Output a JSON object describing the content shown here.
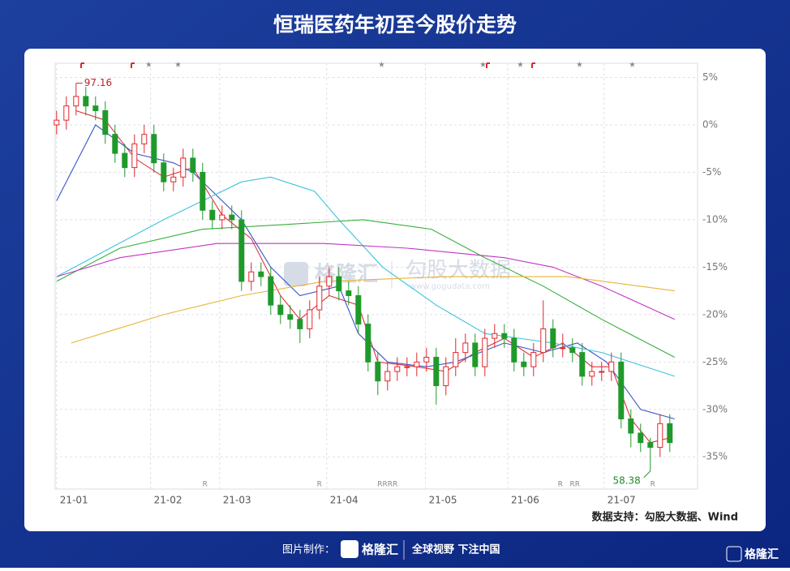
{
  "chart_data": {
    "type": "candlestick",
    "title": "恒瑞医药年初至今股价走势",
    "x": [
      0,
      2,
      4,
      6,
      8,
      10,
      12,
      14,
      16,
      18,
      20,
      22,
      24,
      26,
      28,
      30,
      32,
      34,
      36,
      38,
      40,
      42,
      44,
      46,
      48,
      50,
      52,
      54,
      56,
      58,
      60,
      62,
      64,
      66,
      68,
      70,
      72,
      74,
      76,
      78,
      80,
      82,
      84,
      86,
      88,
      90,
      92,
      94,
      96,
      98,
      100,
      102,
      104,
      106,
      108,
      110,
      112,
      114,
      116,
      118,
      120,
      122,
      124,
      126
    ],
    "open": [
      0,
      0.5,
      2,
      3,
      2,
      1.5,
      -1,
      -3,
      -4.5,
      -2,
      -1,
      -4,
      -6,
      -5.5,
      -3.5,
      -5,
      -9,
      -10,
      -9.5,
      -10,
      -16.5,
      -15.5,
      -16,
      -19,
      -20,
      -20.5,
      -21.5,
      -19.5,
      -17,
      -16,
      -17.5,
      -18,
      -21,
      -25,
      -27,
      -26,
      -25.5,
      -25.5,
      -25,
      -24.5,
      -27.5,
      -25.5,
      -24,
      -23,
      -25.5,
      -22.5,
      -22,
      -22.5,
      -25,
      -25.5,
      -24,
      -21.5,
      -23.5,
      -23.5,
      -24,
      -26.5,
      -26,
      -26,
      -25,
      -31,
      -32.5,
      -33.5,
      -34,
      -31.5
    ],
    "high": [
      1.5,
      3,
      4.4,
      4,
      3,
      2.5,
      0,
      -2,
      -1,
      0,
      0,
      -3,
      -4.5,
      -2.5,
      -2.5,
      -4,
      -8,
      -8.5,
      -8.5,
      -9,
      -14.5,
      -14.5,
      -15,
      -18,
      -19,
      -19.5,
      -18.5,
      -16,
      -15,
      -15,
      -16.5,
      -17,
      -20,
      -24,
      -25,
      -24.5,
      -24.5,
      -24,
      -23.5,
      -23.5,
      -24.5,
      -22.5,
      -22,
      -22,
      -21.5,
      -21,
      -21,
      -21.5,
      -24,
      -23,
      -18.5,
      -20.5,
      -22,
      -22.5,
      -23,
      -25,
      -25,
      -24,
      -24,
      -30,
      -31.5,
      -33,
      -30.5,
      -30.5
    ],
    "low": [
      -1,
      -0.5,
      1,
      1,
      0.5,
      -2,
      -4,
      -5.5,
      -5.5,
      -3,
      -5,
      -7,
      -7,
      -6.5,
      -6,
      -10,
      -11,
      -11,
      -11,
      -17.5,
      -17.5,
      -17,
      -20,
      -21,
      -21.5,
      -23,
      -22.5,
      -20.5,
      -18,
      -18.5,
      -19,
      -22,
      -26,
      -28.5,
      -28,
      -27,
      -26.5,
      -26.5,
      -26,
      -29.5,
      -28.5,
      -26.5,
      -25,
      -26.5,
      -26.5,
      -23.5,
      -23.5,
      -26,
      -26.5,
      -26.5,
      -25,
      -24.5,
      -24.5,
      -25,
      -27.5,
      -27.5,
      -27,
      -27,
      -32,
      -34,
      -34.5,
      -36.5,
      -35,
      -34.5
    ],
    "close": [
      0.5,
      2,
      3,
      2,
      1.5,
      -1,
      -3,
      -4.5,
      -2,
      -1,
      -4,
      -6,
      -5.5,
      -3.5,
      -5,
      -9,
      -10,
      -9.5,
      -10,
      -16.5,
      -15.5,
      -16,
      -19,
      -20,
      -20.5,
      -21.5,
      -19.5,
      -17,
      -16,
      -17.5,
      -18,
      -21,
      -25,
      -27,
      -26,
      -25.5,
      -25.5,
      -25,
      -24.5,
      -27.5,
      -25.5,
      -24,
      -23,
      -25.5,
      -22.5,
      -22,
      -22.5,
      -25,
      -25.5,
      -24,
      -21.5,
      -23.5,
      -23.5,
      -24,
      -26.5,
      -26,
      -26,
      -25,
      -31,
      -32.5,
      -33.5,
      -34,
      -31.5,
      -33.5
    ],
    "up_color": "#e0262a",
    "down_color": "#1f9a2a",
    "lines": [
      {
        "color": "#e0303c",
        "x": [
          4,
          10,
          16,
          22,
          28,
          34,
          40,
          46,
          50,
          56,
          62,
          66,
          74,
          80,
          86,
          92,
          98,
          104,
          110,
          114,
          118,
          122,
          126
        ],
        "values": [
          1.5,
          0.5,
          -3.5,
          -5.5,
          -4.5,
          -9.5,
          -12,
          -18,
          -20.5,
          -18,
          -19,
          -25,
          -25.5,
          -26,
          -24,
          -22.5,
          -24.5,
          -23,
          -25.5,
          -25.5,
          -31,
          -33.5,
          -33
        ]
      },
      {
        "color": "#3a55c8",
        "x": [
          0,
          8,
          16,
          24,
          28,
          38,
          44,
          50,
          58,
          62,
          68,
          76,
          82,
          92,
          100,
          107,
          113,
          120,
          127
        ],
        "values": [
          -8,
          0,
          -3,
          -4,
          -5,
          -10,
          -15,
          -18,
          -17,
          -22,
          -25,
          -25.5,
          -25,
          -23,
          -24,
          -23,
          -25,
          -30,
          -31
        ]
      },
      {
        "color": "#3cc4dc",
        "x": [
          0,
          22,
          38,
          44,
          53,
          58,
          67,
          78,
          88,
          102,
          112,
          127
        ],
        "values": [
          -16,
          -10,
          -6,
          -5.5,
          -7,
          -10,
          -15,
          -19,
          -22,
          -23,
          -24,
          -26.5
        ]
      },
      {
        "color": "#35b03a",
        "x": [
          0,
          13,
          30,
          47,
          63,
          77,
          88,
          100,
          112,
          127
        ],
        "values": [
          -16.5,
          -13,
          -11,
          -10.5,
          -10,
          -11,
          -14,
          -17,
          -20.5,
          -24.5
        ]
      },
      {
        "color": "#c234c4",
        "x": [
          0,
          13,
          33,
          55,
          72,
          92,
          102,
          112,
          127
        ],
        "values": [
          -16,
          -14,
          -12.5,
          -12.5,
          -13,
          -14,
          -15,
          -17,
          -20.5
        ]
      },
      {
        "color": "#e8b436",
        "x": [
          3,
          22,
          38,
          55,
          80,
          105,
          127
        ],
        "values": [
          -23,
          -20,
          -18,
          -16.5,
          -16,
          -16,
          -17.5
        ]
      }
    ],
    "high_label": "97.16",
    "low_label": "58.38",
    "events": [
      {
        "x": 30.5,
        "label": "R"
      },
      {
        "x": 54,
        "label": "R"
      },
      {
        "x": 68,
        "label": "RRRR"
      },
      {
        "x": 103.5,
        "label": "R"
      },
      {
        "x": 106.5,
        "label": "RR"
      },
      {
        "x": 122.5,
        "label": "R"
      }
    ],
    "xlim": [
      -0.3,
      131.7
    ],
    "xticks": [
      {
        "value": 0,
        "label": "21-01"
      },
      {
        "value": 19.3,
        "label": "21-02"
      },
      {
        "value": 33.5,
        "label": "21-03"
      },
      {
        "value": 55.5,
        "label": "21-04"
      },
      {
        "value": 75.8,
        "label": "21-05"
      },
      {
        "value": 92.7,
        "label": "21-06"
      },
      {
        "value": 112.5,
        "label": "21-07"
      }
    ],
    "ylim": [
      -38.4,
      6.5
    ],
    "yticks": [
      {
        "value": 5,
        "label": "5%"
      },
      {
        "value": 0,
        "label": "0%"
      },
      {
        "value": -5,
        "label": "-5%"
      },
      {
        "value": -10,
        "label": "-10%"
      },
      {
        "value": -15,
        "label": "-15%"
      },
      {
        "value": -20,
        "label": "-20%"
      },
      {
        "value": -25,
        "label": "-25%"
      },
      {
        "value": -30,
        "label": "-30%"
      },
      {
        "value": -35,
        "label": "-35%"
      }
    ],
    "grid": true
  },
  "watermark": {
    "brand": "格隆汇",
    "name": "勾股大数据",
    "url": "www.gogudata.com"
  },
  "source": "数据支持：勾股大数据、Wind",
  "footer": {
    "made_by": "图片制作：",
    "brand": "格隆汇",
    "slogan": "全球视野 下注中国",
    "logo": "格隆汇"
  }
}
